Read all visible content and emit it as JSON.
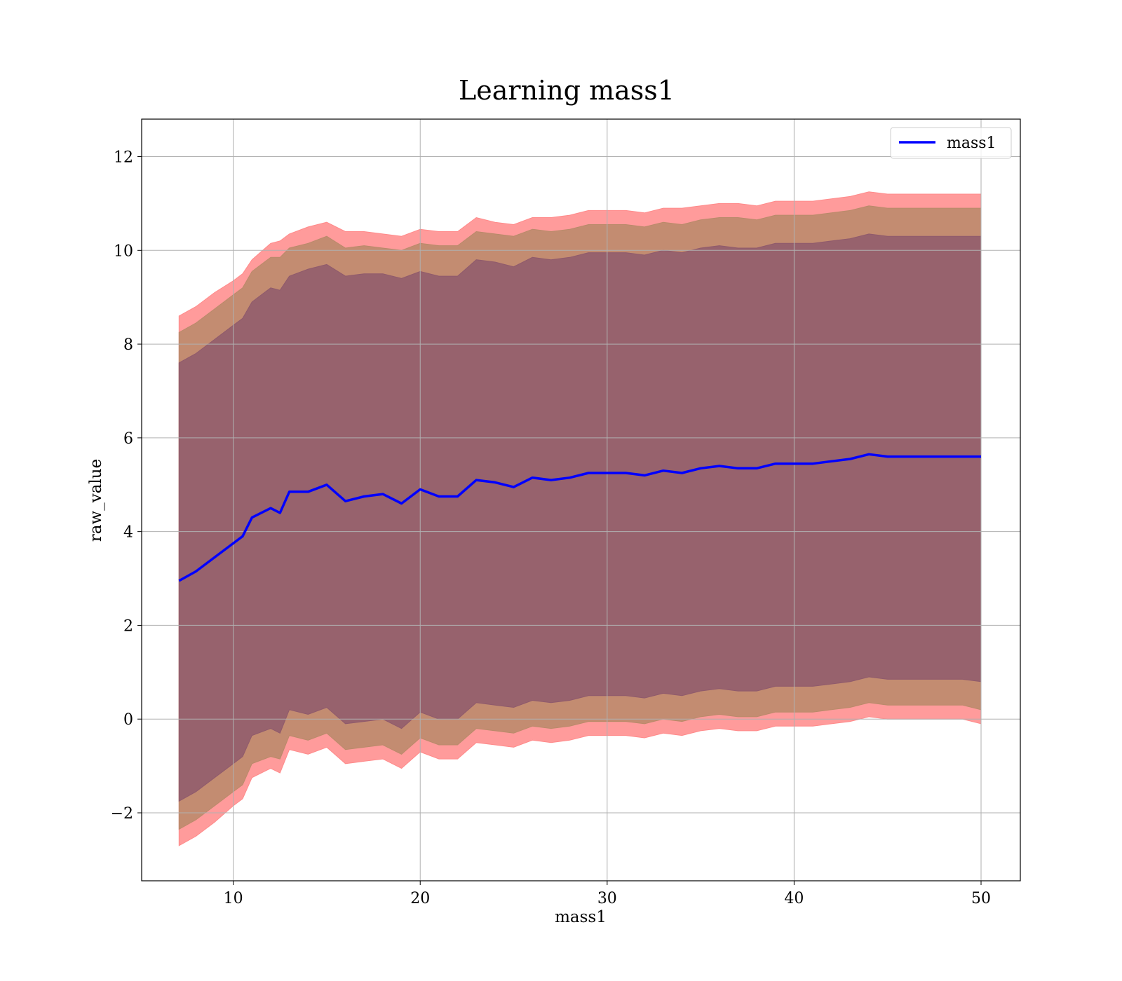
{
  "chart_data": {
    "type": "area",
    "title": "Learning mass1",
    "xlabel": "mass1",
    "ylabel": "raw_value",
    "xlim": [
      5.1,
      52.1
    ],
    "ylim": [
      -3.45,
      12.8
    ],
    "xticks": [
      10,
      20,
      30,
      40,
      50
    ],
    "yticks": [
      -2,
      0,
      2,
      4,
      6,
      8,
      10,
      12
    ],
    "xtick_labels": [
      "10",
      "20",
      "30",
      "40",
      "50"
    ],
    "ytick_labels": [
      "−2",
      "0",
      "2",
      "4",
      "6",
      "8",
      "10",
      "12"
    ],
    "grid": true,
    "legend": {
      "position": "top-right",
      "entries": [
        "mass1"
      ]
    },
    "colors": {
      "line": "#0000ff",
      "outer_band": "#ff8a8a",
      "middle_band": "#b98a6a",
      "inner_band": "#8f5a6c",
      "grid": "#b0b0b0"
    },
    "x": [
      7.1,
      8,
      9,
      10,
      10.5,
      11,
      12,
      12.5,
      13,
      14,
      15,
      16,
      17,
      18,
      19,
      20,
      21,
      22,
      23,
      24,
      25,
      26,
      27,
      28,
      29,
      30,
      31,
      32,
      33,
      34,
      35,
      36,
      37,
      38,
      39,
      40,
      41,
      42,
      43,
      44,
      45,
      46,
      47,
      48,
      49,
      50
    ],
    "series": [
      {
        "name": "mass1",
        "values": [
          2.95,
          3.15,
          3.45,
          3.75,
          3.9,
          4.3,
          4.5,
          4.4,
          4.85,
          4.85,
          5.0,
          4.65,
          4.75,
          4.8,
          4.6,
          4.9,
          4.75,
          4.75,
          5.1,
          5.05,
          4.95,
          5.15,
          5.1,
          5.15,
          5.25,
          5.25,
          5.25,
          5.2,
          5.3,
          5.25,
          5.35,
          5.4,
          5.35,
          5.35,
          5.45,
          5.45,
          5.45,
          5.5,
          5.55,
          5.65,
          5.6,
          5.6,
          5.6,
          5.6,
          5.6,
          5.6
        ]
      }
    ],
    "bands": [
      {
        "name": "outer",
        "upper": [
          8.6,
          8.8,
          9.1,
          9.35,
          9.5,
          9.8,
          10.15,
          10.2,
          10.35,
          10.5,
          10.6,
          10.4,
          10.4,
          10.35,
          10.3,
          10.45,
          10.4,
          10.4,
          10.7,
          10.6,
          10.55,
          10.7,
          10.7,
          10.75,
          10.85,
          10.85,
          10.85,
          10.8,
          10.9,
          10.9,
          10.95,
          11.0,
          11.0,
          10.95,
          11.05,
          11.05,
          11.05,
          11.1,
          11.15,
          11.25,
          11.2,
          11.2,
          11.2,
          11.2,
          11.2,
          11.2
        ],
        "lower": [
          -2.7,
          -2.5,
          -2.2,
          -1.85,
          -1.7,
          -1.25,
          -1.05,
          -1.15,
          -0.65,
          -0.75,
          -0.6,
          -0.95,
          -0.9,
          -0.85,
          -1.05,
          -0.7,
          -0.85,
          -0.85,
          -0.5,
          -0.55,
          -0.6,
          -0.45,
          -0.5,
          -0.45,
          -0.35,
          -0.35,
          -0.35,
          -0.4,
          -0.3,
          -0.35,
          -0.25,
          -0.2,
          -0.25,
          -0.25,
          -0.15,
          -0.15,
          -0.15,
          -0.1,
          -0.05,
          0.05,
          0.0,
          0.0,
          0.0,
          0.0,
          0.0,
          -0.1
        ]
      },
      {
        "name": "middle",
        "upper": [
          8.25,
          8.45,
          8.75,
          9.05,
          9.2,
          9.55,
          9.85,
          9.85,
          10.05,
          10.15,
          10.3,
          10.05,
          10.1,
          10.05,
          10.0,
          10.15,
          10.1,
          10.1,
          10.4,
          10.35,
          10.3,
          10.45,
          10.4,
          10.45,
          10.55,
          10.55,
          10.55,
          10.5,
          10.6,
          10.55,
          10.65,
          10.7,
          10.7,
          10.65,
          10.75,
          10.75,
          10.75,
          10.8,
          10.85,
          10.95,
          10.9,
          10.9,
          10.9,
          10.9,
          10.9,
          10.9
        ],
        "lower": [
          -2.35,
          -2.15,
          -1.85,
          -1.55,
          -1.4,
          -0.95,
          -0.8,
          -0.85,
          -0.35,
          -0.45,
          -0.3,
          -0.65,
          -0.6,
          -0.55,
          -0.75,
          -0.4,
          -0.55,
          -0.55,
          -0.2,
          -0.25,
          -0.3,
          -0.15,
          -0.2,
          -0.15,
          -0.05,
          -0.05,
          -0.05,
          -0.1,
          0.0,
          -0.05,
          0.05,
          0.1,
          0.05,
          0.05,
          0.15,
          0.15,
          0.15,
          0.2,
          0.25,
          0.35,
          0.3,
          0.3,
          0.3,
          0.3,
          0.3,
          0.2
        ]
      },
      {
        "name": "inner",
        "upper": [
          7.6,
          7.8,
          8.1,
          8.4,
          8.55,
          8.9,
          9.2,
          9.15,
          9.45,
          9.6,
          9.7,
          9.45,
          9.5,
          9.5,
          9.4,
          9.55,
          9.45,
          9.45,
          9.8,
          9.75,
          9.65,
          9.85,
          9.8,
          9.85,
          9.95,
          9.95,
          9.95,
          9.9,
          10.0,
          9.95,
          10.05,
          10.1,
          10.05,
          10.05,
          10.15,
          10.15,
          10.15,
          10.2,
          10.25,
          10.35,
          10.3,
          10.3,
          10.3,
          10.3,
          10.3,
          10.3
        ],
        "lower": [
          -1.75,
          -1.55,
          -1.25,
          -0.95,
          -0.8,
          -0.35,
          -0.2,
          -0.3,
          0.2,
          0.1,
          0.25,
          -0.1,
          -0.05,
          0.0,
          -0.2,
          0.15,
          0.0,
          0.0,
          0.35,
          0.3,
          0.25,
          0.4,
          0.35,
          0.4,
          0.5,
          0.5,
          0.5,
          0.45,
          0.55,
          0.5,
          0.6,
          0.65,
          0.6,
          0.6,
          0.7,
          0.7,
          0.7,
          0.75,
          0.8,
          0.9,
          0.85,
          0.85,
          0.85,
          0.85,
          0.85,
          0.8
        ]
      }
    ]
  }
}
